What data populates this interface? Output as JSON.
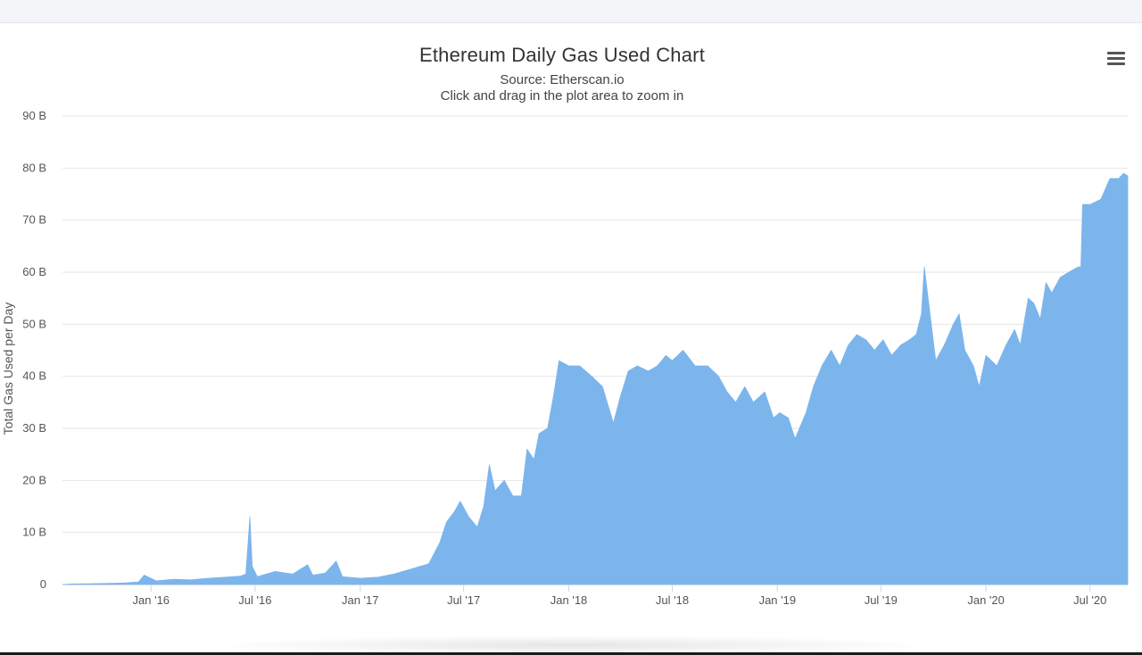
{
  "chart_data": {
    "type": "area",
    "title": "Ethereum Daily Gas Used Chart",
    "subtitle": [
      "Source: Etherscan.io",
      "Click and drag in the plot area to zoom in"
    ],
    "ylabel": "Total Gas Used per Day",
    "xlabel": "",
    "ylim": [
      0,
      90
    ],
    "y_unit": "B",
    "y_ticks": [
      "0",
      "10 B",
      "20 B",
      "30 B",
      "40 B",
      "50 B",
      "60 B",
      "70 B",
      "80 B",
      "90 B"
    ],
    "x_range": [
      "2015-07-30",
      "2020-09-05"
    ],
    "x_ticks": [
      {
        "date": "2016-01-01",
        "label": "Jan '16"
      },
      {
        "date": "2016-07-01",
        "label": "Jul '16"
      },
      {
        "date": "2017-01-01",
        "label": "Jan '17"
      },
      {
        "date": "2017-07-01",
        "label": "Jul '17"
      },
      {
        "date": "2018-01-01",
        "label": "Jan '18"
      },
      {
        "date": "2018-07-01",
        "label": "Jul '18"
      },
      {
        "date": "2019-01-01",
        "label": "Jan '19"
      },
      {
        "date": "2019-07-01",
        "label": "Jul '19"
      },
      {
        "date": "2020-01-01",
        "label": "Jan '20"
      },
      {
        "date": "2020-07-01",
        "label": "Jul '20"
      }
    ],
    "grid": true,
    "legend": "none",
    "color": "#7cb5ec",
    "series": [
      {
        "points": [
          [
            "2015-07-30",
            0.0
          ],
          [
            "2015-08-15",
            0.1
          ],
          [
            "2015-09-15",
            0.15
          ],
          [
            "2015-10-15",
            0.2
          ],
          [
            "2015-11-15",
            0.3
          ],
          [
            "2015-12-10",
            0.5
          ],
          [
            "2015-12-20",
            1.8
          ],
          [
            "2016-01-10",
            0.7
          ],
          [
            "2016-02-10",
            1.0
          ],
          [
            "2016-03-10",
            0.9
          ],
          [
            "2016-04-10",
            1.2
          ],
          [
            "2016-05-10",
            1.4
          ],
          [
            "2016-06-05",
            1.6
          ],
          [
            "2016-06-15",
            2.0
          ],
          [
            "2016-06-22",
            13.0
          ],
          [
            "2016-06-26",
            3.5
          ],
          [
            "2016-07-05",
            1.5
          ],
          [
            "2016-08-05",
            2.5
          ],
          [
            "2016-09-05",
            2.0
          ],
          [
            "2016-10-01",
            3.8
          ],
          [
            "2016-10-10",
            1.8
          ],
          [
            "2016-11-01",
            2.2
          ],
          [
            "2016-11-20",
            4.5
          ],
          [
            "2016-12-01",
            1.5
          ],
          [
            "2017-01-01",
            1.2
          ],
          [
            "2017-02-01",
            1.4
          ],
          [
            "2017-03-01",
            2.0
          ],
          [
            "2017-04-01",
            3.0
          ],
          [
            "2017-05-01",
            4.0
          ],
          [
            "2017-05-20",
            8.0
          ],
          [
            "2017-06-01",
            12.0
          ],
          [
            "2017-06-15",
            14.0
          ],
          [
            "2017-06-25",
            16.0
          ],
          [
            "2017-07-10",
            13.0
          ],
          [
            "2017-07-25",
            11.0
          ],
          [
            "2017-08-05",
            15.0
          ],
          [
            "2017-08-15",
            23.0
          ],
          [
            "2017-08-25",
            18.0
          ],
          [
            "2017-09-10",
            20.0
          ],
          [
            "2017-09-25",
            17.0
          ],
          [
            "2017-10-10",
            17.0
          ],
          [
            "2017-10-20",
            26.0
          ],
          [
            "2017-11-01",
            24.0
          ],
          [
            "2017-11-10",
            29.0
          ],
          [
            "2017-11-25",
            30.0
          ],
          [
            "2017-12-05",
            36.0
          ],
          [
            "2017-12-15",
            43.0
          ],
          [
            "2018-01-01",
            42.0
          ],
          [
            "2018-01-20",
            42.0
          ],
          [
            "2018-02-10",
            40.0
          ],
          [
            "2018-03-01",
            38.0
          ],
          [
            "2018-03-20",
            31.0
          ],
          [
            "2018-04-01",
            36.0
          ],
          [
            "2018-04-15",
            41.0
          ],
          [
            "2018-05-01",
            42.0
          ],
          [
            "2018-05-20",
            41.0
          ],
          [
            "2018-06-05",
            42.0
          ],
          [
            "2018-06-20",
            44.0
          ],
          [
            "2018-07-01",
            43.0
          ],
          [
            "2018-07-20",
            45.0
          ],
          [
            "2018-08-10",
            42.0
          ],
          [
            "2018-09-01",
            42.0
          ],
          [
            "2018-09-20",
            40.0
          ],
          [
            "2018-10-05",
            37.0
          ],
          [
            "2018-10-20",
            35.0
          ],
          [
            "2018-11-05",
            38.0
          ],
          [
            "2018-11-20",
            35.0
          ],
          [
            "2018-12-10",
            37.0
          ],
          [
            "2018-12-25",
            32.0
          ],
          [
            "2019-01-05",
            33.0
          ],
          [
            "2019-01-20",
            32.0
          ],
          [
            "2019-02-01",
            28.0
          ],
          [
            "2019-02-20",
            33.0
          ],
          [
            "2019-03-05",
            38.0
          ],
          [
            "2019-03-20",
            42.0
          ],
          [
            "2019-04-05",
            45.0
          ],
          [
            "2019-04-20",
            42.0
          ],
          [
            "2019-05-05",
            46.0
          ],
          [
            "2019-05-20",
            48.0
          ],
          [
            "2019-06-05",
            47.0
          ],
          [
            "2019-06-20",
            45.0
          ],
          [
            "2019-07-05",
            47.0
          ],
          [
            "2019-07-20",
            44.0
          ],
          [
            "2019-08-05",
            46.0
          ],
          [
            "2019-08-20",
            47.0
          ],
          [
            "2019-09-01",
            48.0
          ],
          [
            "2019-09-10",
            52.0
          ],
          [
            "2019-09-15",
            61.0
          ],
          [
            "2019-09-25",
            52.0
          ],
          [
            "2019-10-05",
            43.0
          ],
          [
            "2019-10-20",
            46.0
          ],
          [
            "2019-11-05",
            50.0
          ],
          [
            "2019-11-15",
            52.0
          ],
          [
            "2019-11-25",
            45.0
          ],
          [
            "2019-12-10",
            42.0
          ],
          [
            "2019-12-20",
            38.0
          ],
          [
            "2020-01-01",
            44.0
          ],
          [
            "2020-01-20",
            42.0
          ],
          [
            "2020-02-05",
            46.0
          ],
          [
            "2020-02-20",
            49.0
          ],
          [
            "2020-03-01",
            46.0
          ],
          [
            "2020-03-15",
            55.0
          ],
          [
            "2020-03-25",
            54.0
          ],
          [
            "2020-04-05",
            51.0
          ],
          [
            "2020-04-15",
            58.0
          ],
          [
            "2020-04-25",
            56.0
          ],
          [
            "2020-05-10",
            59.0
          ],
          [
            "2020-05-25",
            60.0
          ],
          [
            "2020-06-10",
            61.0
          ],
          [
            "2020-06-15",
            61.0
          ],
          [
            "2020-06-18",
            73.0
          ],
          [
            "2020-07-01",
            73.0
          ],
          [
            "2020-07-20",
            74.0
          ],
          [
            "2020-08-05",
            78.0
          ],
          [
            "2020-08-20",
            78.0
          ],
          [
            "2020-08-29",
            79.0
          ],
          [
            "2020-09-05",
            78.5
          ]
        ]
      }
    ]
  }
}
